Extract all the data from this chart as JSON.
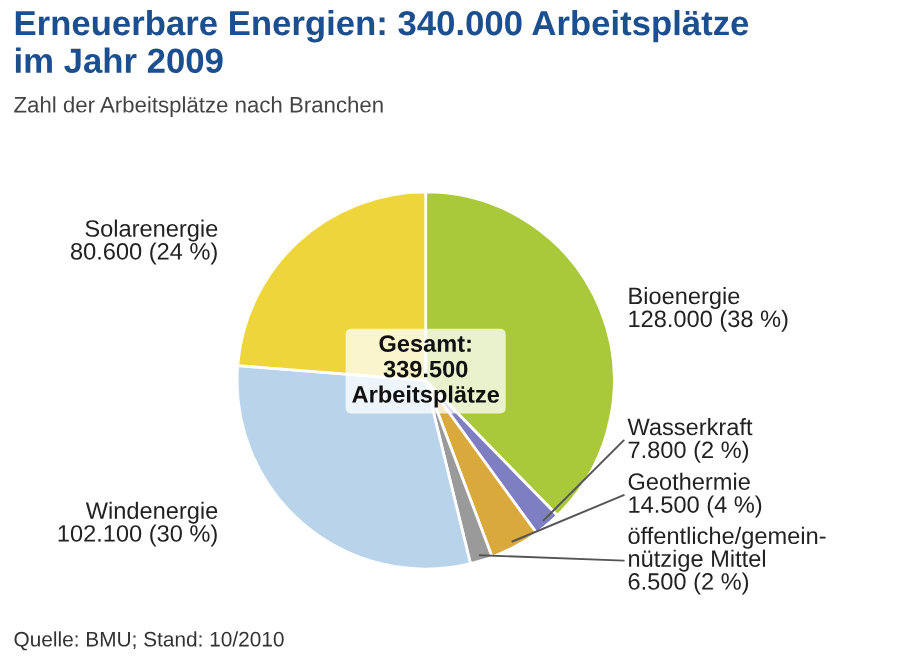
{
  "chart_data": {
    "type": "pie",
    "title": "Erneuerbare Energien: 340.000 Arbeitsplätze\nim Jahr 2009",
    "subtitle": "Zahl der Arbeitsplätze nach Branchen",
    "categories": [
      "Bioenergie",
      "Wasserkraft",
      "Geothermie",
      "öffentliche/gemein-\nnützige Mittel",
      "Windenergie",
      "Solarenergie"
    ],
    "values": [
      128000,
      7800,
      14500,
      6500,
      102100,
      80600
    ],
    "value_labels": [
      "128.000 (38 %)",
      "7.800 (2 %)",
      "14.500 (4 %)",
      "6.500 (2 %)",
      "102.100 (30 %)",
      "80.600 (24 %)"
    ],
    "colors": [
      "#a9c93a",
      "#7e7fc2",
      "#d9a93c",
      "#9a9a9a",
      "#b9d3ea",
      "#efd53c"
    ],
    "annotations": [
      "Gesamt:\n339.500\nArbeitsplätze",
      "Quelle: BMU; Stand: 10/2010"
    ],
    "legend": false
  }
}
